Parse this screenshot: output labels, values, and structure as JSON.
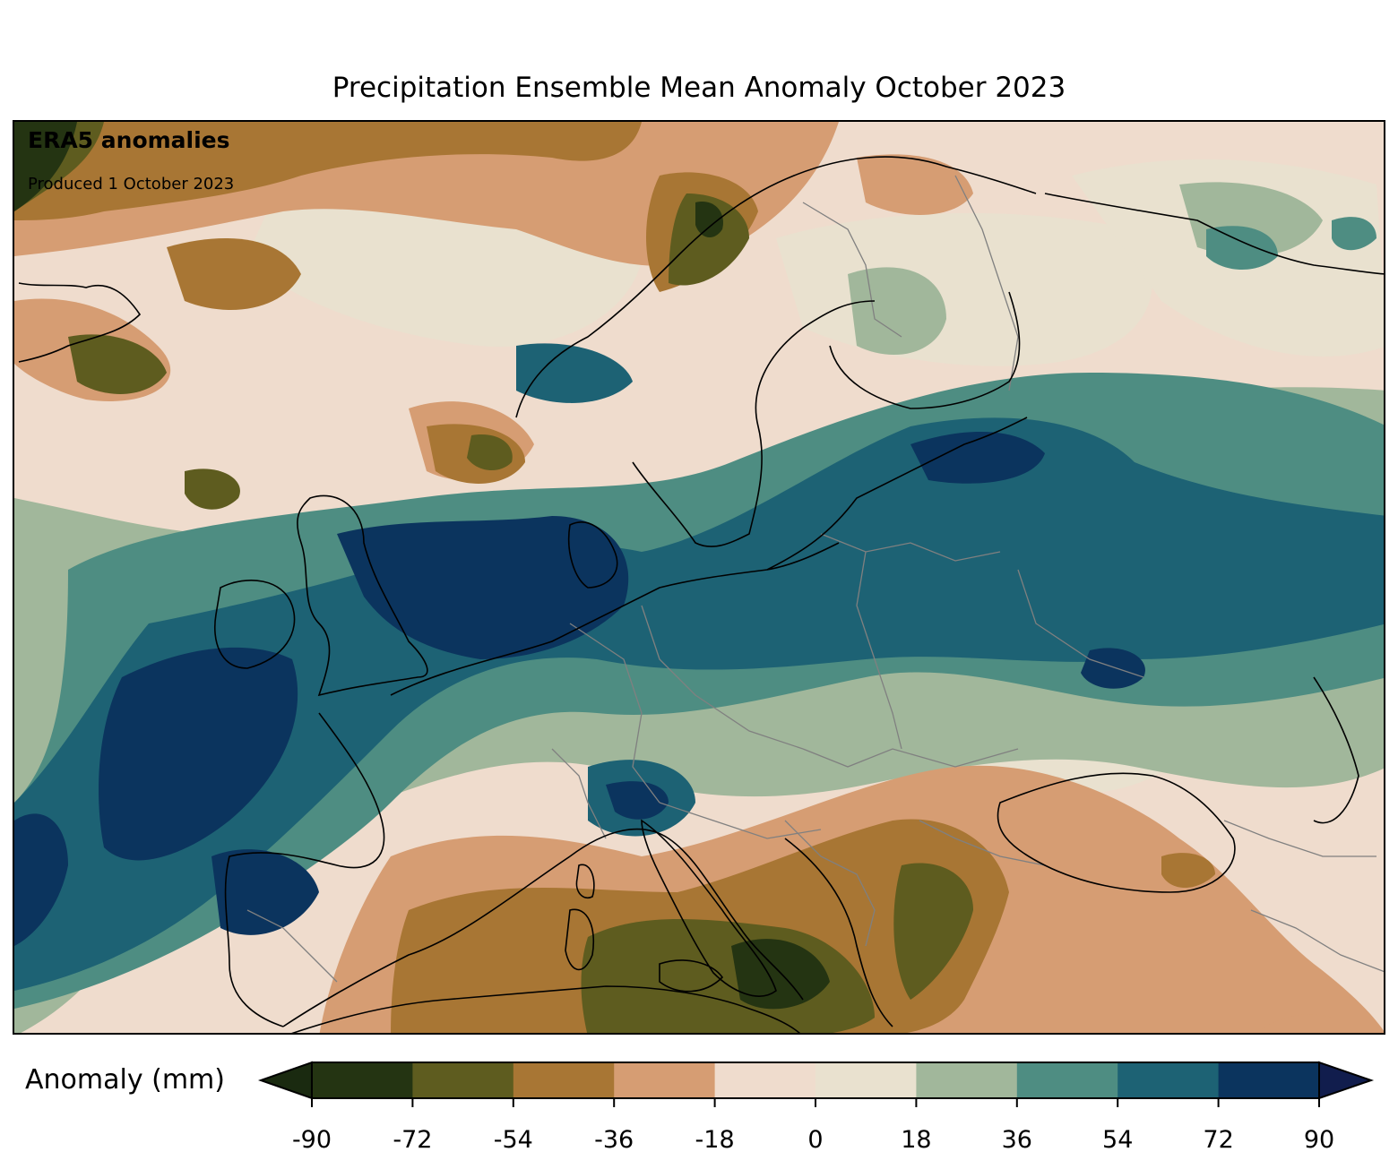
{
  "title": "Precipitation Ensemble Mean Anomaly October 2023",
  "map": {
    "source_label": "ERA5 anomalies",
    "produced_label": "Produced 1 October 2023",
    "region": "Europe"
  },
  "colorbar": {
    "label": "Anomaly (mm)",
    "ticks": [
      "-90",
      "-72",
      "-54",
      "-36",
      "-18",
      "0",
      "18",
      "36",
      "54",
      "72",
      "90"
    ],
    "colors": [
      "#243412",
      "#5e5c1f",
      "#a87634",
      "#d69d73",
      "#efdccd",
      "#e9e1cf",
      "#a1b79b",
      "#4e8d82",
      "#1d6274",
      "#0b345e"
    ],
    "under_color": "#1a2a10",
    "over_color": "#111d4d"
  },
  "colors": {
    "coastline": "#000000",
    "border": "#808080"
  }
}
